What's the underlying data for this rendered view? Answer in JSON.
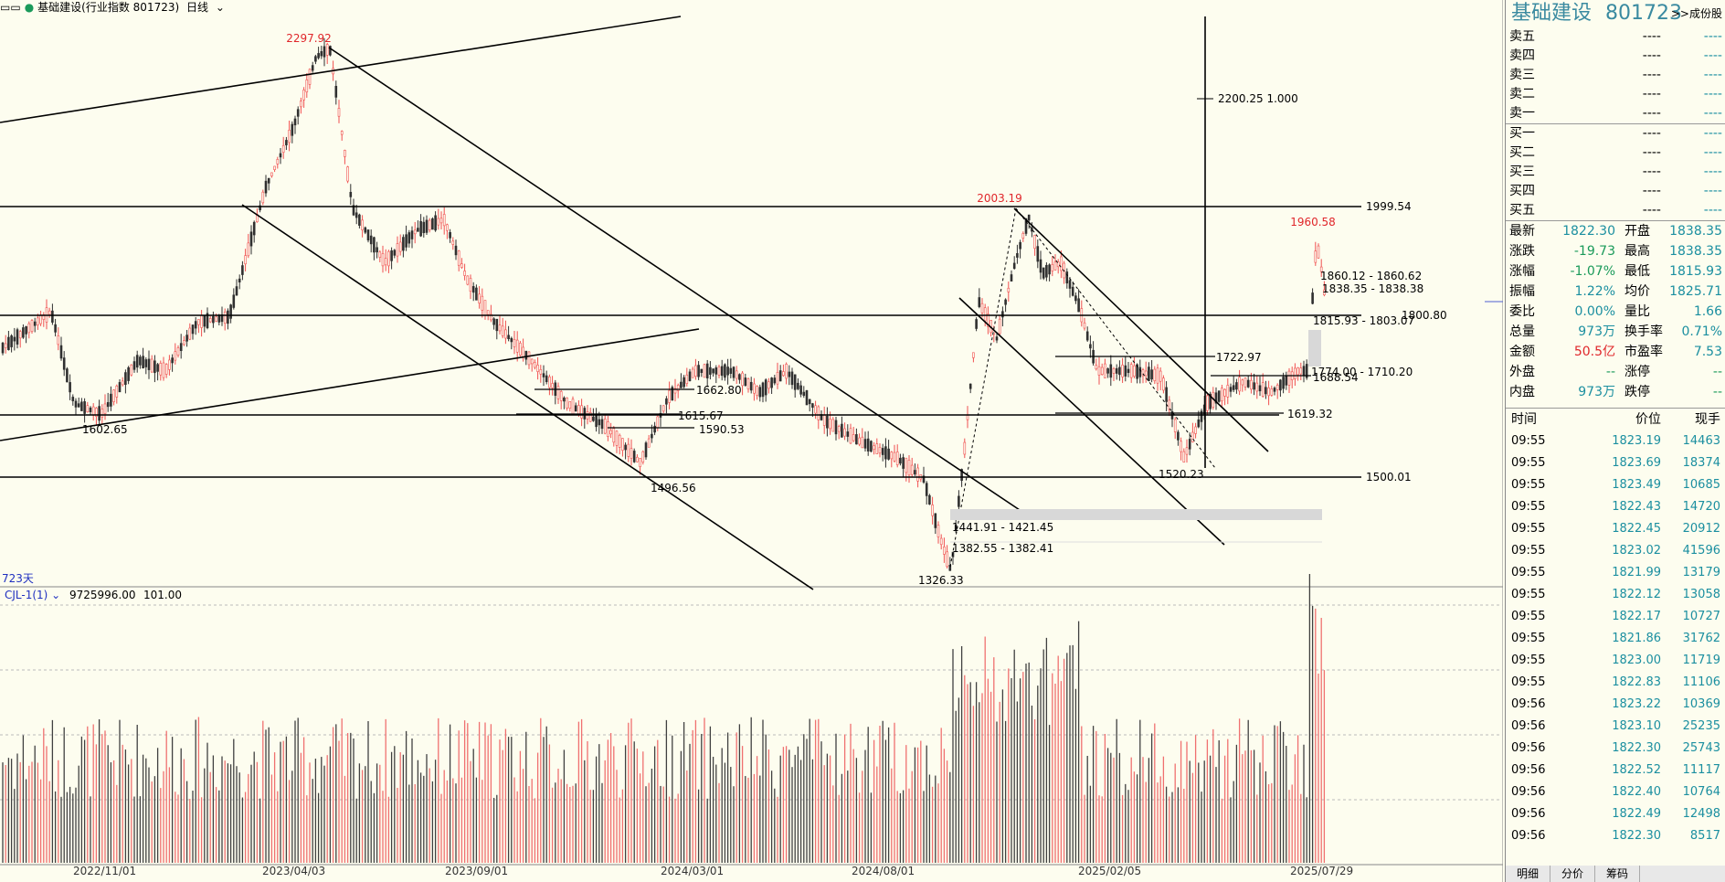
{
  "header": {
    "menu_icon": "menu-dots-icon",
    "title": "基础建设(行业指数 801723)",
    "period": "日线"
  },
  "chart_data": {
    "type": "candlestick",
    "price_range": [
      1326,
      2300
    ],
    "annotations": {
      "high_label": "2297.92",
      "low_1602": "1602.65",
      "low_1496": "1496.56",
      "level_1662": "1662.80",
      "level_1615": "1615.67",
      "level_1590": "1590.53",
      "low_1326": "1326.33",
      "range_1441": "1441.91 - 1421.45",
      "range_1382": "1382.55 - 1382.41",
      "peak_2003": "2003.19",
      "level_2200": "2200.25  1.000",
      "level_1999": "1999.54",
      "level_1800": "1800.80",
      "level_1500": "1500.01",
      "peak_1960": "1960.58",
      "range_1860": "1860.12 - 1860.62",
      "range_1838": "1838.35 - 1838.38",
      "range_1815": "1815.93 - 1803.07",
      "level_1722": "1722.97",
      "range_1774": "1774.00 - 1710.20",
      "level_1688": "1688.54",
      "level_1619": "1619.32",
      "low_1520": "1520.23",
      "days": "723天"
    },
    "volume_indicator": {
      "name": "CJL-1(1)",
      "value1": "9725996.00",
      "value2": "101.00"
    },
    "dates": [
      "2022/11/01",
      "2023/04/03",
      "2023/09/01",
      "2024/03/01",
      "2024/08/01",
      "2025/02/05",
      "2025/07/29"
    ]
  },
  "quote_panel": {
    "name": "基础建设",
    "code": "801723",
    "constituents_link": ">>成份股",
    "sell": [
      {
        "label": "卖五",
        "price": "----",
        "volume": "----"
      },
      {
        "label": "卖四",
        "price": "----",
        "volume": "----"
      },
      {
        "label": "卖三",
        "price": "----",
        "volume": "----"
      },
      {
        "label": "卖二",
        "price": "----",
        "volume": "----"
      },
      {
        "label": "卖一",
        "price": "----",
        "volume": "----"
      }
    ],
    "buy": [
      {
        "label": "买一",
        "price": "----",
        "volume": "----"
      },
      {
        "label": "买二",
        "price": "----",
        "volume": "----"
      },
      {
        "label": "买三",
        "price": "----",
        "volume": "----"
      },
      {
        "label": "买四",
        "price": "----",
        "volume": "----"
      },
      {
        "label": "买五",
        "price": "----",
        "volume": "----"
      }
    ],
    "stats": [
      {
        "l1": "最新",
        "v1": "1822.30",
        "l2": "开盘",
        "v2": "1838.35"
      },
      {
        "l1": "涨跌",
        "v1": "-19.73",
        "l2": "最高",
        "v2": "1838.35"
      },
      {
        "l1": "涨幅",
        "v1": "-1.07%",
        "l2": "最低",
        "v2": "1815.93"
      },
      {
        "l1": "振幅",
        "v1": "1.22%",
        "l2": "均价",
        "v2": "1825.71"
      },
      {
        "l1": "委比",
        "v1": "0.00%",
        "l2": "量比",
        "v2": "1.66"
      },
      {
        "l1": "总量",
        "v1": "973万",
        "l2": "换手率",
        "v2": "0.71%"
      },
      {
        "l1": "金额",
        "v1": "50.5亿",
        "l2": "市盈率",
        "v2": "7.53"
      },
      {
        "l1": "外盘",
        "v1": "--",
        "l2": "涨停",
        "v2": "--"
      },
      {
        "l1": "内盘",
        "v1": "973万",
        "l2": "跌停",
        "v2": "--"
      }
    ],
    "ticks_header": {
      "time": "时间",
      "price": "价位",
      "volume": "现手"
    },
    "ticks": [
      {
        "time": "09:55",
        "price": "1823.19",
        "volume": "14463"
      },
      {
        "time": "09:55",
        "price": "1823.69",
        "volume": "18374"
      },
      {
        "time": "09:55",
        "price": "1823.49",
        "volume": "10685"
      },
      {
        "time": "09:55",
        "price": "1822.43",
        "volume": "14720"
      },
      {
        "time": "09:55",
        "price": "1822.45",
        "volume": "20912"
      },
      {
        "time": "09:55",
        "price": "1823.02",
        "volume": "41596"
      },
      {
        "time": "09:55",
        "price": "1821.99",
        "volume": "13179"
      },
      {
        "time": "09:55",
        "price": "1822.12",
        "volume": "13058"
      },
      {
        "time": "09:55",
        "price": "1822.17",
        "volume": "10727"
      },
      {
        "time": "09:55",
        "price": "1821.86",
        "volume": "31762"
      },
      {
        "time": "09:55",
        "price": "1823.00",
        "volume": "11719"
      },
      {
        "time": "09:55",
        "price": "1822.83",
        "volume": "11106"
      },
      {
        "time": "09:56",
        "price": "1823.22",
        "volume": "10369"
      },
      {
        "time": "09:56",
        "price": "1823.10",
        "volume": "25235"
      },
      {
        "time": "09:56",
        "price": "1822.30",
        "volume": "25743"
      },
      {
        "time": "09:56",
        "price": "1822.52",
        "volume": "11117"
      },
      {
        "time": "09:56",
        "price": "1822.40",
        "volume": "10764"
      },
      {
        "time": "09:56",
        "price": "1822.49",
        "volume": "12498"
      },
      {
        "time": "09:56",
        "price": "1822.30",
        "volume": "8517"
      }
    ],
    "tabs": [
      "明细",
      "分价",
      "筹码"
    ]
  }
}
